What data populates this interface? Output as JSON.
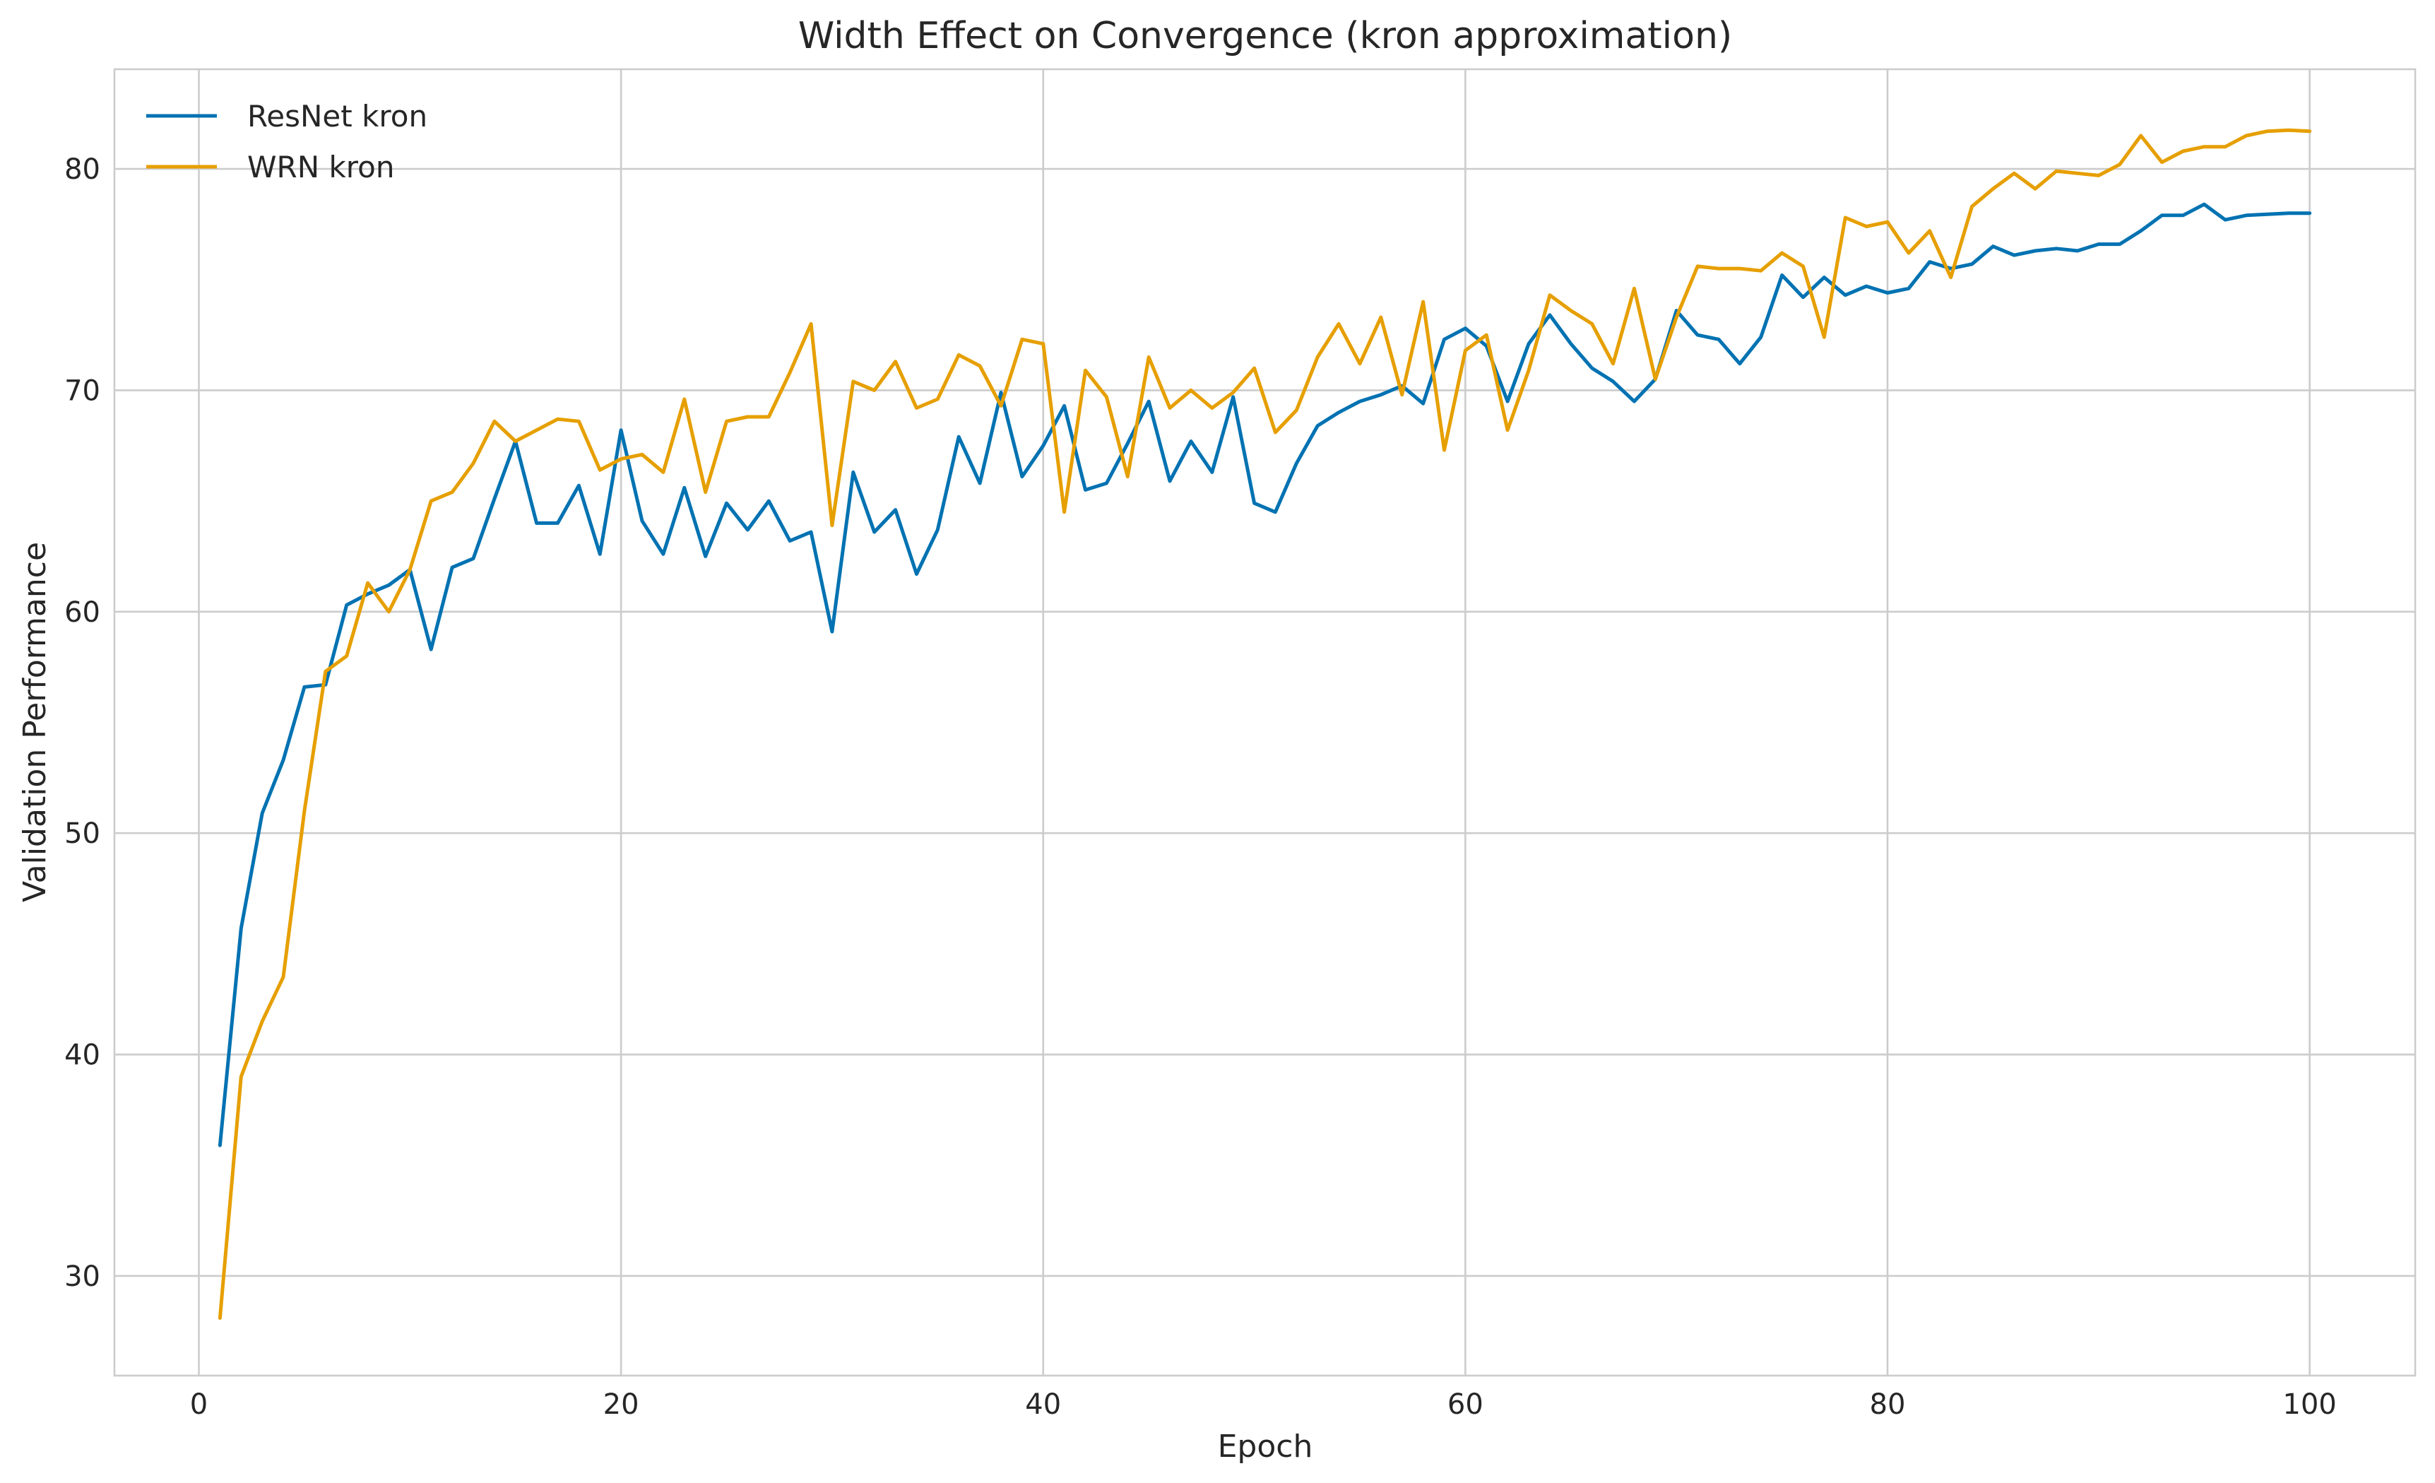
{
  "chart_data": {
    "type": "line",
    "title": "Width Effect on Convergence (kron approximation)",
    "xlabel": "Epoch",
    "ylabel": "Validation Performance",
    "xlim": [
      -4,
      105
    ],
    "ylim": [
      25.5,
      84.5
    ],
    "xticks": [
      0,
      20,
      40,
      60,
      80,
      100
    ],
    "yticks": [
      30,
      40,
      50,
      60,
      70,
      80
    ],
    "grid": true,
    "legend_position": "top-left",
    "x": [
      1,
      2,
      3,
      4,
      5,
      6,
      7,
      8,
      9,
      10,
      11,
      12,
      13,
      14,
      15,
      16,
      17,
      18,
      19,
      20,
      21,
      22,
      23,
      24,
      25,
      26,
      27,
      28,
      29,
      30,
      31,
      32,
      33,
      34,
      35,
      36,
      37,
      38,
      39,
      40,
      41,
      42,
      43,
      44,
      45,
      46,
      47,
      48,
      49,
      50,
      51,
      52,
      53,
      54,
      55,
      56,
      57,
      58,
      59,
      60,
      61,
      62,
      63,
      64,
      65,
      66,
      67,
      68,
      69,
      70,
      71,
      72,
      73,
      74,
      75,
      76,
      77,
      78,
      79,
      80,
      81,
      82,
      83,
      84,
      85,
      86,
      87,
      88,
      89,
      90,
      91,
      92,
      93,
      94,
      95,
      96,
      97,
      98,
      99,
      100
    ],
    "series": [
      {
        "name": "ResNet kron",
        "color": "#0072b2",
        "values": [
          35.9,
          45.7,
          50.9,
          53.3,
          56.6,
          56.7,
          60.3,
          60.8,
          61.2,
          61.9,
          58.3,
          62.0,
          62.4,
          65.1,
          67.7,
          64.0,
          64.0,
          65.7,
          62.6,
          68.2,
          64.1,
          62.6,
          65.6,
          62.5,
          64.9,
          63.7,
          65.0,
          63.2,
          63.6,
          59.1,
          66.3,
          63.6,
          64.6,
          61.7,
          63.7,
          67.9,
          65.8,
          69.9,
          66.1,
          67.5,
          69.3,
          65.5,
          65.8,
          67.6,
          69.5,
          65.9,
          67.7,
          66.3,
          69.7,
          64.9,
          64.5,
          66.7,
          68.4,
          69.0,
          69.5,
          69.8,
          70.2,
          69.4,
          72.3,
          72.8,
          72.0,
          69.5,
          72.1,
          73.4,
          72.1,
          71.0,
          70.4,
          69.5,
          70.5,
          73.6,
          72.5,
          72.3,
          71.2,
          72.4,
          75.2,
          74.2,
          75.1,
          74.3,
          74.7,
          74.4,
          74.6,
          75.8,
          75.5,
          75.7,
          76.5,
          76.1,
          76.3,
          76.4,
          76.3,
          76.6,
          76.6,
          77.2,
          77.9,
          77.9,
          78.4,
          77.7,
          77.9,
          77.95,
          78.0,
          78.0
        ]
      },
      {
        "name": "WRN kron",
        "color": "#e69f00",
        "values": [
          28.1,
          39.0,
          41.5,
          43.5,
          51.0,
          57.3,
          58.0,
          61.3,
          60.0,
          61.9,
          65.0,
          65.4,
          66.7,
          68.6,
          67.7,
          68.2,
          68.7,
          68.6,
          66.4,
          66.9,
          67.1,
          66.3,
          69.6,
          65.4,
          68.6,
          68.8,
          68.8,
          70.8,
          73.0,
          63.9,
          70.4,
          70.0,
          71.3,
          69.2,
          69.6,
          71.6,
          71.1,
          69.3,
          72.3,
          72.1,
          64.5,
          70.9,
          69.7,
          66.1,
          71.5,
          69.2,
          70.0,
          69.2,
          69.9,
          71.0,
          68.1,
          69.1,
          71.5,
          73.0,
          71.2,
          73.3,
          69.8,
          74.0,
          67.3,
          71.8,
          72.5,
          68.2,
          70.9,
          74.3,
          73.6,
          73.0,
          71.2,
          74.6,
          70.5,
          73.3,
          75.6,
          75.5,
          75.5,
          75.4,
          76.2,
          75.6,
          72.4,
          77.8,
          77.4,
          77.6,
          76.2,
          77.2,
          75.1,
          78.3,
          79.1,
          79.8,
          79.1,
          79.9,
          79.8,
          79.7,
          80.2,
          81.5,
          80.3,
          80.8,
          81.0,
          81.0,
          81.5,
          81.7,
          81.75,
          81.7
        ]
      }
    ]
  }
}
